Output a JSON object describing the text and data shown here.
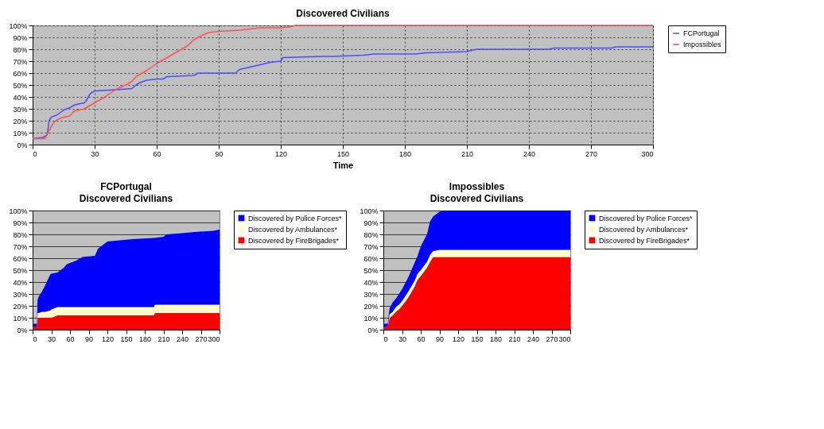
{
  "chart_data": [
    {
      "type": "line",
      "title": "Discovered Civilians",
      "xlabel": "Time",
      "grid": true,
      "legend": "right",
      "xlim": [
        0,
        300
      ],
      "xticks": [
        0,
        30,
        60,
        90,
        120,
        150,
        180,
        210,
        240,
        270,
        300
      ],
      "ylim": [
        0,
        100
      ],
      "yticks": [
        {
          "value": 0,
          "label": "0%"
        },
        {
          "value": 10,
          "label": "10%"
        },
        {
          "value": 20,
          "label": "20%"
        },
        {
          "value": 30,
          "label": "30%"
        },
        {
          "value": 40,
          "label": "40%"
        },
        {
          "value": 50,
          "label": "50%"
        },
        {
          "value": 60,
          "label": "60%"
        },
        {
          "value": 70,
          "label": "70%"
        },
        {
          "value": 80,
          "label": "80%"
        },
        {
          "value": 90,
          "label": "90%"
        },
        {
          "value": 100,
          "label": "100%"
        }
      ],
      "series": [
        {
          "name": "FCPortugal",
          "color": "#4b4bff",
          "x": [
            0,
            5,
            7,
            8,
            9,
            12,
            15,
            18,
            20,
            22,
            25,
            26,
            28,
            30,
            40,
            48,
            50,
            52,
            55,
            60,
            63,
            65,
            78,
            80,
            98,
            100,
            105,
            110,
            115,
            120,
            121,
            140,
            145,
            160,
            165,
            185,
            190,
            210,
            212,
            215,
            250,
            252,
            280,
            282,
            300
          ],
          "values": [
            5,
            6,
            8,
            20,
            23,
            25,
            29,
            31,
            33,
            34,
            35,
            37,
            43,
            45,
            46,
            47,
            50,
            52,
            54,
            55,
            55,
            57,
            58,
            60,
            60,
            63,
            65,
            67,
            69,
            70,
            73,
            74,
            74,
            75,
            76,
            76,
            77,
            78,
            79,
            80,
            80,
            81,
            81,
            82,
            82
          ]
        },
        {
          "name": "Impossibles",
          "color": "#ff5050",
          "x": [
            0,
            6,
            8,
            10,
            12,
            15,
            18,
            20,
            25,
            28,
            30,
            33,
            35,
            40,
            45,
            48,
            50,
            55,
            60,
            65,
            70,
            75,
            78,
            80,
            85,
            90,
            100,
            105,
            110,
            120,
            125,
            127,
            300
          ],
          "values": [
            5,
            5,
            12,
            18,
            21,
            23,
            24,
            28,
            30,
            33,
            35,
            38,
            40,
            46,
            50,
            53,
            57,
            62,
            68,
            73,
            78,
            83,
            88,
            90,
            94,
            95,
            96,
            97,
            98,
            98,
            99,
            100,
            100
          ]
        }
      ]
    },
    {
      "type": "area",
      "stacked": true,
      "title": "FCPortugal",
      "subtitle": "Discovered Civilians",
      "grid": "y",
      "legend": "right",
      "xlim": [
        0,
        300
      ],
      "xticks": [
        0,
        30,
        60,
        90,
        120,
        150,
        180,
        210,
        240,
        270,
        300
      ],
      "ylim": [
        0,
        100
      ],
      "yticks": [
        {
          "value": 0,
          "label": "0%"
        },
        {
          "value": 10,
          "label": "10%"
        },
        {
          "value": 20,
          "label": "20%"
        },
        {
          "value": 30,
          "label": "30%"
        },
        {
          "value": 40,
          "label": "40%"
        },
        {
          "value": 50,
          "label": "50%"
        },
        {
          "value": 60,
          "label": "60%"
        },
        {
          "value": 70,
          "label": "70%"
        },
        {
          "value": 80,
          "label": "80%"
        },
        {
          "value": 90,
          "label": "90%"
        },
        {
          "value": 100,
          "label": "100%"
        }
      ],
      "x": [
        0,
        7,
        8,
        10,
        15,
        20,
        28,
        30,
        40,
        50,
        55,
        60,
        70,
        80,
        100,
        105,
        115,
        120,
        140,
        160,
        195,
        196,
        210,
        215,
        240,
        260,
        290,
        300
      ],
      "series": [
        {
          "name": "Discovered by FireBrigades*",
          "color": "#ff0000",
          "values": [
            2,
            3,
            10,
            10,
            10,
            10,
            10,
            10,
            12,
            12,
            12,
            12,
            12,
            12,
            12,
            12,
            12,
            12,
            12,
            12,
            12,
            14,
            14,
            14,
            14,
            14,
            14,
            14
          ]
        },
        {
          "name": "Discovered by Ambulances*",
          "color": "#ffffcc",
          "values": [
            0,
            0,
            4,
            4,
            5,
            5,
            6,
            7,
            7,
            7,
            7,
            7,
            7,
            7,
            7,
            7,
            7,
            7,
            7,
            7,
            7,
            7,
            7,
            7,
            7,
            7,
            7,
            7
          ]
        },
        {
          "name": "Discovered by Police Forces*",
          "color": "#0000ff",
          "values": [
            3,
            2,
            11,
            14,
            17,
            22,
            30,
            30,
            29,
            33,
            36,
            37,
            39,
            42,
            43,
            49,
            53,
            55,
            56,
            57,
            58,
            56,
            57,
            59,
            60,
            61,
            62,
            63
          ]
        }
      ]
    },
    {
      "type": "area",
      "stacked": true,
      "title": "Impossibles",
      "subtitle": "Discovered Civilians",
      "grid": "y",
      "legend": "right",
      "xlim": [
        0,
        300
      ],
      "xticks": [
        0,
        30,
        60,
        90,
        120,
        150,
        180,
        210,
        240,
        270,
        300
      ],
      "ylim": [
        0,
        100
      ],
      "yticks": [
        {
          "value": 0,
          "label": "0%"
        },
        {
          "value": 10,
          "label": "10%"
        },
        {
          "value": 20,
          "label": "20%"
        },
        {
          "value": 30,
          "label": "30%"
        },
        {
          "value": 40,
          "label": "40%"
        },
        {
          "value": 50,
          "label": "50%"
        },
        {
          "value": 60,
          "label": "60%"
        },
        {
          "value": 70,
          "label": "70%"
        },
        {
          "value": 80,
          "label": "80%"
        },
        {
          "value": 90,
          "label": "90%"
        },
        {
          "value": 100,
          "label": "100%"
        }
      ],
      "x": [
        0,
        7,
        10,
        15,
        20,
        25,
        30,
        40,
        50,
        55,
        60,
        70,
        75,
        80,
        90,
        100,
        105,
        300
      ],
      "series": [
        {
          "name": "Discovered by FireBrigades*",
          "color": "#ff0000",
          "values": [
            2,
            3,
            10,
            12,
            15,
            17,
            20,
            27,
            36,
            42,
            45,
            52,
            57,
            61,
            61,
            61,
            61,
            61
          ]
        },
        {
          "name": "Discovered by Ambulances*",
          "color": "#ffffcc",
          "values": [
            0,
            0,
            3,
            3,
            4,
            4,
            4,
            5,
            5,
            5,
            5,
            5,
            6,
            5,
            6,
            6,
            6,
            6
          ]
        },
        {
          "name": "Discovered by Police Forces*",
          "color": "#0000ff",
          "values": [
            3,
            2,
            5,
            8,
            7,
            9,
            10,
            12,
            15,
            15,
            20,
            23,
            28,
            29,
            32,
            33,
            33,
            33
          ]
        }
      ]
    }
  ]
}
